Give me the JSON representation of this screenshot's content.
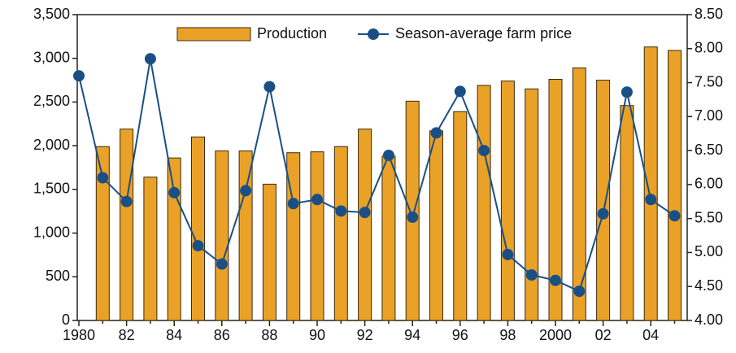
{
  "chart_data": {
    "type": "bar_line",
    "categories": [
      "1980",
      null,
      "82",
      null,
      "84",
      null,
      "86",
      null,
      "88",
      null,
      "90",
      null,
      "92",
      null,
      "94",
      null,
      "96",
      null,
      "98",
      null,
      "2000",
      null,
      "02",
      null,
      "04",
      null
    ],
    "series": [
      {
        "name": "Production",
        "type": "bar",
        "color": "#e9a127",
        "axis": "y",
        "values": [
          null,
          1990,
          2190,
          1640,
          1860,
          2100,
          1940,
          1940,
          1560,
          1920,
          1930,
          1990,
          2190,
          1880,
          2510,
          2170,
          2390,
          2690,
          2740,
          2650,
          2760,
          2890,
          2750,
          2460,
          3130,
          3090
        ]
      },
      {
        "name": "Season-average farm price",
        "type": "line",
        "color": "#1a4f86",
        "axis": "y2",
        "values": [
          7.6,
          6.1,
          5.75,
          7.85,
          5.88,
          5.1,
          4.83,
          5.91,
          7.44,
          5.72,
          5.78,
          5.61,
          5.59,
          6.43,
          5.52,
          6.76,
          7.37,
          6.5,
          4.97,
          4.67,
          4.59,
          4.43,
          5.57,
          7.36,
          5.78,
          5.54
        ]
      }
    ],
    "ylim": [
      0,
      3500
    ],
    "yticks": [
      0,
      500,
      {
        "value": 1000,
        "label": "1,000"
      },
      {
        "value": 1500,
        "label": "1,500"
      },
      {
        "value": 2000,
        "label": "2,000"
      },
      {
        "value": 2500,
        "label": "2,500"
      },
      {
        "value": 3000,
        "label": "3,000"
      },
      {
        "value": 3500,
        "label": "3,500"
      }
    ],
    "y2lim": [
      4,
      8.5
    ],
    "y2ticks": [
      {
        "value": 4,
        "label": "4.00"
      },
      {
        "value": 4.5,
        "label": "4.50"
      },
      {
        "value": 5,
        "label": "5.00"
      },
      {
        "value": 5.5,
        "label": "5.50"
      },
      {
        "value": 6,
        "label": "6.00"
      },
      {
        "value": 6.5,
        "label": "6.50"
      },
      {
        "value": 7,
        "label": "7.00"
      },
      {
        "value": 7.5,
        "label": "7.50"
      },
      {
        "value": 8,
        "label": "8.00"
      },
      {
        "value": 8.5,
        "label": "8.50"
      }
    ],
    "legend": "top"
  }
}
